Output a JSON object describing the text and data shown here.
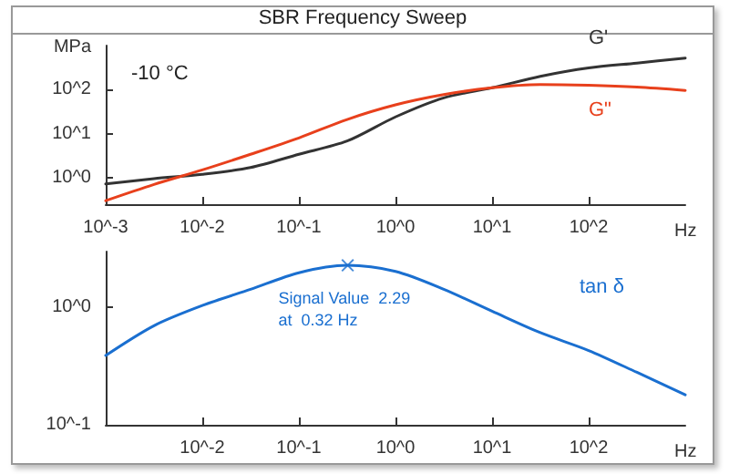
{
  "chart_data": [
    {
      "type": "line",
      "title": "SBR Frequency Sweep",
      "xlabel": "Hz",
      "ylabel": "MPa",
      "log": "xy",
      "xlim": [
        0.001,
        1000
      ],
      "ylim": [
        0.25,
        1000
      ],
      "xticks": [
        {
          "value": 0.001,
          "label": "10^-3"
        },
        {
          "value": 0.01,
          "label": "10^-2"
        },
        {
          "value": 0.1,
          "label": "10^-1"
        },
        {
          "value": 1,
          "label": "10^0"
        },
        {
          "value": 10,
          "label": "10^1"
        },
        {
          "value": 100,
          "label": "10^2"
        }
      ],
      "yticks": [
        {
          "value": 1,
          "label": "10^0"
        },
        {
          "value": 10,
          "label": "10^1"
        },
        {
          "value": 100,
          "label": "10^2"
        }
      ],
      "annotations": [
        "-10 °C"
      ],
      "x": [
        0.001,
        0.00316,
        0.01,
        0.0316,
        0.1,
        0.316,
        1,
        3.16,
        10,
        31.6,
        100,
        316,
        1000
      ],
      "series": [
        {
          "name": "G'",
          "color": "#333333",
          "values": [
            0.72,
            0.95,
            1.19,
            1.7,
            3.4,
            6.8,
            24,
            65,
            110,
            200,
            310,
            400,
            520
          ]
        },
        {
          "name": "G\"",
          "color": "#e8401c",
          "values": [
            0.3,
            0.7,
            1.5,
            3.4,
            8,
            21,
            45,
            77,
            110,
            130,
            125,
            114,
            96
          ]
        }
      ]
    },
    {
      "type": "line",
      "xlabel": "Hz",
      "log": "xy",
      "xlim": [
        0.001,
        1000
      ],
      "ylim": [
        0.1,
        3
      ],
      "xticks": [
        {
          "value": 0.01,
          "label": "10^-2"
        },
        {
          "value": 0.1,
          "label": "10^-1"
        },
        {
          "value": 1,
          "label": "10^0"
        },
        {
          "value": 10,
          "label": "10^1"
        },
        {
          "value": 100,
          "label": "10^2"
        }
      ],
      "yticks": [
        {
          "value": 0.1,
          "label": "10^-1"
        },
        {
          "value": 1,
          "label": "10^0"
        }
      ],
      "annotations": [
        {
          "text": "Signal Value  2.29\nat  0.32 Hz",
          "x": 0.32,
          "y": 2.29
        }
      ],
      "x": [
        0.001,
        0.00316,
        0.01,
        0.0316,
        0.1,
        0.316,
        1,
        3.16,
        10,
        31.6,
        100,
        316,
        1000
      ],
      "series": [
        {
          "name": "tan δ",
          "color": "#1a6fd0",
          "values": [
            0.39,
            0.7,
            1.04,
            1.43,
            1.98,
            2.29,
            2.03,
            1.43,
            0.93,
            0.61,
            0.43,
            0.28,
            0.18
          ]
        },
        {
          "type": "scatter",
          "marker": "cross",
          "color": "#1a6fd0",
          "x": [
            0.32
          ],
          "values": [
            2.29
          ]
        }
      ]
    }
  ]
}
